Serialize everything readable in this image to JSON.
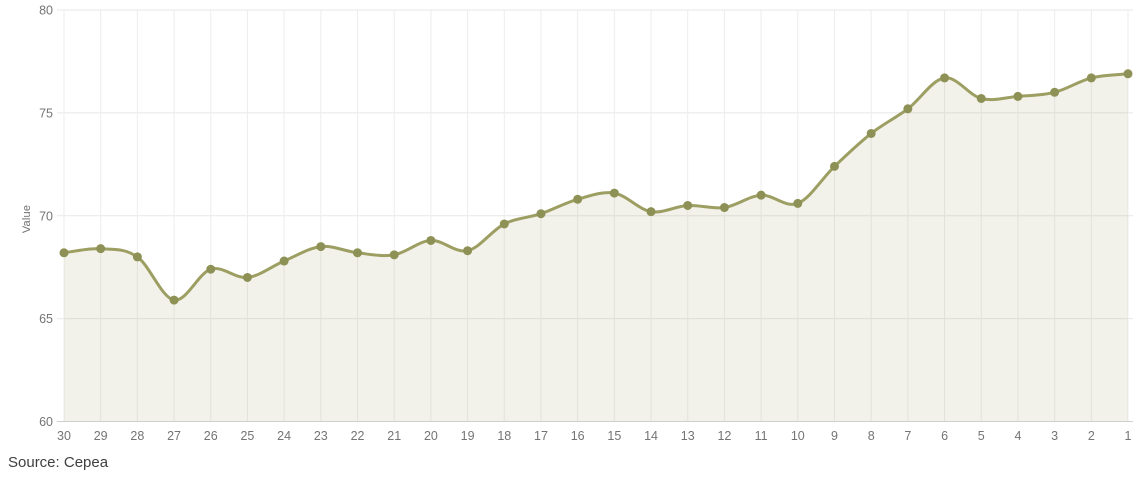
{
  "chart_data": {
    "type": "area",
    "title": "",
    "xlabel": "",
    "ylabel": "Value",
    "categories": [
      "30",
      "29",
      "28",
      "27",
      "26",
      "25",
      "24",
      "23",
      "22",
      "21",
      "20",
      "19",
      "18",
      "17",
      "16",
      "15",
      "14",
      "13",
      "12",
      "11",
      "10",
      "9",
      "8",
      "7",
      "6",
      "5",
      "4",
      "3",
      "2",
      "1"
    ],
    "values": [
      68.2,
      68.4,
      68.0,
      65.9,
      67.4,
      67.0,
      67.8,
      68.5,
      68.2,
      68.1,
      68.8,
      68.3,
      69.6,
      70.1,
      70.8,
      71.1,
      70.2,
      70.5,
      70.4,
      71.0,
      70.6,
      72.4,
      74.0,
      75.2,
      76.7,
      75.7,
      75.8,
      76.0,
      76.7,
      76.9
    ],
    "ylim": [
      60,
      80
    ],
    "yticks": [
      60,
      65,
      70,
      75,
      80
    ],
    "grid": true,
    "legend": "none",
    "line_color": "#9c9e62",
    "marker_color": "#8e9155",
    "area_color": "rgba(154,157,95,0.13)",
    "grid_color_h": "#e7e7e7",
    "grid_color_v": "#ededed",
    "axis_line_color": "#cfcfcf",
    "tick_label_color": "#747474"
  },
  "footer": {
    "source": "Source: Cepea"
  }
}
